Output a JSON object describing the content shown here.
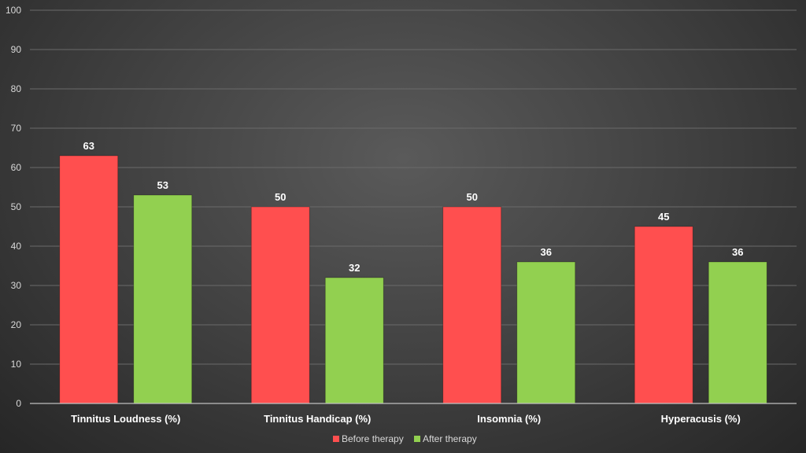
{
  "chart_data": {
    "type": "bar",
    "title": "",
    "xlabel": "",
    "ylabel": "",
    "ylim": [
      0,
      100
    ],
    "yticks": [
      0,
      10,
      20,
      30,
      40,
      50,
      60,
      70,
      80,
      90,
      100
    ],
    "grid": true,
    "legend_position": "bottom",
    "categories": [
      "Tinnitus Loudness (%)",
      "Tinnitus Handicap (%)",
      "Insomnia (%)",
      "Hyperacusis (%)"
    ],
    "series": [
      {
        "name": "Before therapy",
        "color": "#ff4f4f",
        "values": [
          63,
          50,
          50,
          45
        ]
      },
      {
        "name": "After therapy",
        "color": "#92d050",
        "values": [
          53,
          32,
          36,
          36
        ]
      }
    ]
  }
}
